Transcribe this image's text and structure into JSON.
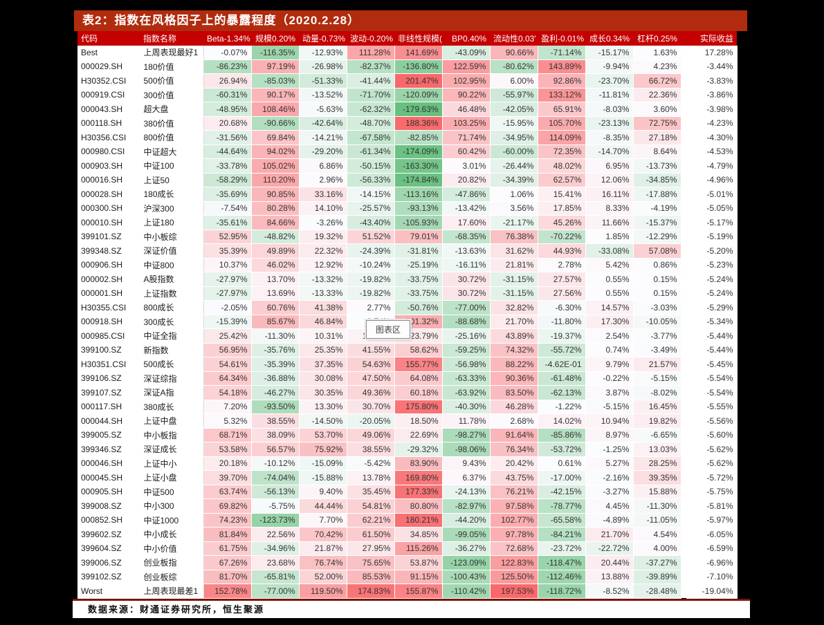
{
  "title": "表2：指数在风格因子上的暴露程度（2020.2.28）",
  "tooltip": "图表区",
  "footer": "数据来源：财通证券研究所，恒生聚源",
  "colors": {
    "title_bar": "#b12c0e",
    "header_bg": "#c40000",
    "positive": "#f8696b",
    "negative": "#63be7b",
    "neutral": "#fcfcff",
    "footer_line": "#7e1400"
  },
  "chart_data": {
    "type": "table",
    "title": "表2：指数在风格因子上的暴露程度（2020.2.28）",
    "columns": [
      "代码",
      "指数名称",
      "Beta-1.34%",
      "规模0.20%",
      "动量-0.73%",
      "波动-0.20%",
      "非线性规模(",
      "BP0.40%",
      "流动性0.03'",
      "盈利-0.01%",
      "成长0.34%",
      "杠杆0.25%",
      "实际收益"
    ],
    "rows": [
      [
        "Best",
        "上周表现最好1",
        "-0.07%",
        "-116.35%",
        "-12.93%",
        "111.28%",
        "141.69%",
        "-43.09%",
        "90.66%",
        "-71.14%",
        "-15.17%",
        "1.63%",
        "17.28%"
      ],
      [
        "000029.SH",
        "180价值",
        "-86.23%",
        "97.19%",
        "-26.98%",
        "-82.37%",
        "-136.80%",
        "122.59%",
        "-80.62%",
        "143.89%",
        "-9.94%",
        "4.23%",
        "-3.44%"
      ],
      [
        "H30352.CSI",
        "500价值",
        "26.94%",
        "-85.03%",
        "-51.33%",
        "-41.44%",
        "201.47%",
        "102.95%",
        "6.00%",
        "92.86%",
        "-23.70%",
        "66.72%",
        "-3.83%"
      ],
      [
        "000919.CSI",
        "300价值",
        "-60.31%",
        "90.17%",
        "-13.52%",
        "-71.70%",
        "-120.09%",
        "90.22%",
        "-55.97%",
        "133.12%",
        "-11.81%",
        "22.36%",
        "-3.86%"
      ],
      [
        "000043.SH",
        "超大盘",
        "-48.95%",
        "108.46%",
        "-5.63%",
        "-62.32%",
        "-179.63%",
        "46.48%",
        "-42.05%",
        "65.91%",
        "-8.03%",
        "3.60%",
        "-3.98%"
      ],
      [
        "000118.SH",
        "380价值",
        "20.68%",
        "-90.66%",
        "-42.64%",
        "-48.70%",
        "188.36%",
        "103.25%",
        "-15.95%",
        "105.70%",
        "-23.13%",
        "72.75%",
        "-4.23%"
      ],
      [
        "H30356.CSI",
        "800价值",
        "-31.56%",
        "69.84%",
        "-14.21%",
        "-67.58%",
        "-82.85%",
        "71.74%",
        "-34.95%",
        "114.09%",
        "-8.35%",
        "27.18%",
        "-4.30%"
      ],
      [
        "000980.CSI",
        "中证超大",
        "-44.64%",
        "94.02%",
        "-29.20%",
        "-61.34%",
        "-174.09%",
        "60.42%",
        "-60.00%",
        "72.35%",
        "-14.70%",
        "8.64%",
        "-4.53%"
      ],
      [
        "000903.SH",
        "中证100",
        "-33.78%",
        "105.02%",
        "6.86%",
        "-50.15%",
        "-163.30%",
        "3.01%",
        "-26.44%",
        "48.02%",
        "6.95%",
        "-13.73%",
        "-4.79%"
      ],
      [
        "000016.SH",
        "上证50",
        "-58.29%",
        "110.20%",
        "2.96%",
        "-56.33%",
        "-174.84%",
        "20.82%",
        "-34.39%",
        "62.57%",
        "12.06%",
        "-34.85%",
        "-4.96%"
      ],
      [
        "000028.SH",
        "180成长",
        "-35.69%",
        "90.85%",
        "33.16%",
        "-14.15%",
        "-113.16%",
        "-47.86%",
        "1.06%",
        "15.41%",
        "16.11%",
        "-17.88%",
        "-5.01%"
      ],
      [
        "000300.SH",
        "沪深300",
        "-7.54%",
        "80.28%",
        "14.10%",
        "-25.57%",
        "-93.13%",
        "-13.42%",
        "3.56%",
        "17.85%",
        "8.33%",
        "-4.19%",
        "-5.05%"
      ],
      [
        "000010.SH",
        "上证180",
        "-35.61%",
        "84.66%",
        "-3.26%",
        "-43.40%",
        "-105.93%",
        "17.60%",
        "-21.17%",
        "45.26%",
        "11.66%",
        "-15.37%",
        "-5.17%"
      ],
      [
        "399101.SZ",
        "中小板综",
        "52.95%",
        "-48.82%",
        "19.32%",
        "51.52%",
        "79.01%",
        "-68.35%",
        "76.38%",
        "-70.22%",
        "1.85%",
        "-12.29%",
        "-5.19%"
      ],
      [
        "399348.SZ",
        "深证价值",
        "35.39%",
        "49.89%",
        "22.32%",
        "-24.39%",
        "-31.81%",
        "-13.63%",
        "31.62%",
        "44.93%",
        "-33.08%",
        "57.08%",
        "-5.20%"
      ],
      [
        "000906.SH",
        "中证800",
        "10.37%",
        "46.02%",
        "12.92%",
        "-10.24%",
        "-25.19%",
        "-16.11%",
        "21.81%",
        "2.78%",
        "5.42%",
        "0.86%",
        "-5.23%"
      ],
      [
        "000002.SH",
        "A股指数",
        "-27.97%",
        "13.70%",
        "-13.32%",
        "-19.82%",
        "-33.75%",
        "30.72%",
        "-31.15%",
        "27.57%",
        "0.55%",
        "0.15%",
        "-5.24%"
      ],
      [
        "000001.SH",
        "上证指数",
        "-27.97%",
        "13.69%",
        "-13.33%",
        "-19.82%",
        "-33.75%",
        "30.72%",
        "-31.15%",
        "27.56%",
        "0.55%",
        "0.15%",
        "-5.24%"
      ],
      [
        "H30355.CSI",
        "800成长",
        "-2.05%",
        "60.76%",
        "41.38%",
        "2.77%",
        "-50.76%",
        "-77.00%",
        "32.82%",
        "-6.30%",
        "14.57%",
        "-3.03%",
        "-5.29%"
      ],
      [
        "000918.SH",
        "300成长",
        "-15.39%",
        "85.67%",
        "46.84%",
        "-0.74%",
        "101.32%",
        "-88.68%",
        "21.70%",
        "-11.80%",
        "17.30%",
        "-10.05%",
        "-5.34%"
      ],
      [
        "000985.CSI",
        "中证全指",
        "25.42%",
        "-11.30%",
        "10.31%",
        "12.99%",
        "23.79%",
        "-25.16%",
        "43.89%",
        "-19.37%",
        "2.54%",
        "-3.77%",
        "-5.44%"
      ],
      [
        "399100.SZ",
        "新指数",
        "56.95%",
        "-35.76%",
        "25.35%",
        "41.55%",
        "58.62%",
        "-59.25%",
        "74.32%",
        "-55.72%",
        "0.74%",
        "-3.49%",
        "-5.44%"
      ],
      [
        "H30351.CSI",
        "500成长",
        "54.61%",
        "-35.39%",
        "37.35%",
        "54.63%",
        "155.77%",
        "-56.98%",
        "88.22%",
        "-4.62E-01",
        "9.79%",
        "21.57%",
        "-5.45%"
      ],
      [
        "399106.SZ",
        "深证综指",
        "64.34%",
        "-36.88%",
        "30.08%",
        "47.50%",
        "64.08%",
        "-63.33%",
        "90.36%",
        "-61.48%",
        "-0.22%",
        "-5.15%",
        "-5.54%"
      ],
      [
        "399107.SZ",
        "深证A指",
        "54.18%",
        "-46.27%",
        "30.35%",
        "49.36%",
        "60.18%",
        "-63.92%",
        "83.50%",
        "-62.13%",
        "3.87%",
        "-8.02%",
        "-5.54%"
      ],
      [
        "000117.SH",
        "380成长",
        "7.20%",
        "-93.50%",
        "13.30%",
        "30.70%",
        "175.80%",
        "-40.30%",
        "46.28%",
        "-1.22%",
        "-5.15%",
        "16.45%",
        "-5.55%"
      ],
      [
        "000044.SH",
        "上证中盘",
        "5.32%",
        "38.55%",
        "-14.50%",
        "-20.05%",
        "18.50%",
        "11.78%",
        "2.68%",
        "14.02%",
        "10.94%",
        "19.82%",
        "-5.56%"
      ],
      [
        "399005.SZ",
        "中小板指",
        "68.71%",
        "38.09%",
        "53.70%",
        "49.06%",
        "22.69%",
        "-98.27%",
        "91.64%",
        "-85.86%",
        "8.97%",
        "-6.65%",
        "-5.60%"
      ],
      [
        "399346.SZ",
        "深证成长",
        "53.58%",
        "56.57%",
        "75.92%",
        "38.55%",
        "-29.32%",
        "-98.06%",
        "76.34%",
        "-53.72%",
        "-1.25%",
        "13.03%",
        "-5.62%"
      ],
      [
        "000046.SH",
        "上证中小",
        "20.18%",
        "-10.12%",
        "-15.09%",
        "-5.42%",
        "83.90%",
        "9.43%",
        "20.42%",
        "0.61%",
        "5.27%",
        "28.25%",
        "-5.62%"
      ],
      [
        "000045.SH",
        "上证小盘",
        "39.70%",
        "-74.04%",
        "-15.88%",
        "13.78%",
        "169.80%",
        "6.37%",
        "43.75%",
        "-17.00%",
        "-2.16%",
        "39.35%",
        "-5.72%"
      ],
      [
        "000905.SH",
        "中证500",
        "63.74%",
        "-56.13%",
        "9.40%",
        "35.45%",
        "177.33%",
        "-24.13%",
        "76.21%",
        "-42.15%",
        "-3.27%",
        "15.88%",
        "-5.75%"
      ],
      [
        "399008.SZ",
        "中小300",
        "69.82%",
        "-5.75%",
        "44.44%",
        "54.81%",
        "80.80%",
        "-82.97%",
        "97.58%",
        "-78.77%",
        "4.45%",
        "-11.30%",
        "-5.81%"
      ],
      [
        "000852.SH",
        "中证1000",
        "74.23%",
        "-123.73%",
        "7.70%",
        "62.21%",
        "180.21%",
        "-44.20%",
        "102.77%",
        "-65.58%",
        "-4.89%",
        "-11.05%",
        "-5.97%"
      ],
      [
        "399602.SZ",
        "中小成长",
        "81.84%",
        "22.56%",
        "70.42%",
        "61.50%",
        "34.85%",
        "-99.05%",
        "97.78%",
        "-84.21%",
        "21.70%",
        "4.54%",
        "-6.05%"
      ],
      [
        "399604.SZ",
        "中小价值",
        "61.75%",
        "-34.96%",
        "21.87%",
        "27.95%",
        "115.26%",
        "-36.27%",
        "72.68%",
        "-23.72%",
        "-22.72%",
        "4.00%",
        "-6.59%"
      ],
      [
        "399006.SZ",
        "创业板指",
        "67.26%",
        "23.68%",
        "76.74%",
        "75.65%",
        "53.87%",
        "-123.09%",
        "122.83%",
        "-118.47%",
        "20.44%",
        "-37.27%",
        "-6.96%"
      ],
      [
        "399102.SZ",
        "创业板综",
        "81.70%",
        "-65.81%",
        "52.00%",
        "85.53%",
        "91.15%",
        "-100.43%",
        "125.50%",
        "-112.46%",
        "13.88%",
        "-39.89%",
        "-7.10%"
      ],
      [
        "Worst",
        "上周表现最差1",
        "152.78%",
        "-77.00%",
        "119.50%",
        "174.83%",
        "155.87%",
        "-110.42%",
        "197.53%",
        "-118.72%",
        "-8.52%",
        "-28.48%",
        "-19.04%"
      ]
    ]
  }
}
